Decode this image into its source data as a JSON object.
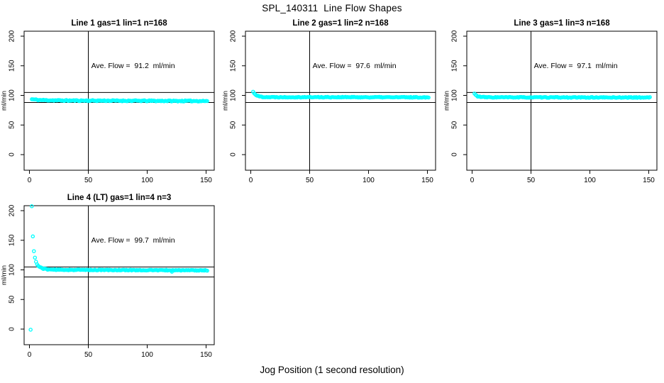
{
  "figure": {
    "title": "SPL_140311  Line Flow Shapes",
    "xlabel": "Jog Position (1 second resolution)",
    "background_color": "#ffffff",
    "line_color": "#000000",
    "marker_color": "#00ffff"
  },
  "chart_data": [
    {
      "type": "scatter",
      "title": "Line 1 gas=1 lin=1 n=168",
      "annotation": "Ave. Flow =  91.2  ml/min",
      "ave_flow_ml_min": 91.2,
      "n": 168,
      "ylabel": "ml/min",
      "x_ticks": [
        0,
        50,
        100,
        150
      ],
      "y_ticks": [
        0,
        50,
        100,
        150,
        200
      ],
      "xlim": [
        -4.5,
        157
      ],
      "ylim": [
        -26,
        210
      ],
      "grid": false,
      "ref_vline_x": 50,
      "ref_hlines_y": [
        105,
        88
      ],
      "marker_color": "#00ffff",
      "series_profile": [
        [
          2,
          93.5
        ],
        [
          8,
          92.2
        ],
        [
          30,
          91.3
        ],
        [
          80,
          91.0
        ],
        [
          130,
          90.6
        ],
        [
          151,
          90.6
        ]
      ],
      "outliers": [],
      "noise": 0.9,
      "seed": 11
    },
    {
      "type": "scatter",
      "title": "Line 2 gas=1 lin=2 n=168",
      "annotation": "Ave. Flow =  97.6  ml/min",
      "ave_flow_ml_min": 97.6,
      "n": 168,
      "ylabel": "ml/min",
      "x_ticks": [
        0,
        50,
        100,
        150
      ],
      "y_ticks": [
        0,
        50,
        100,
        150,
        200
      ],
      "xlim": [
        -4.5,
        157
      ],
      "ylim": [
        -26,
        210
      ],
      "grid": false,
      "ref_vline_x": 50,
      "ref_hlines_y": [
        105,
        88
      ],
      "marker_color": "#00ffff",
      "series_profile": [
        [
          2,
          106
        ],
        [
          3,
          103.5
        ],
        [
          5,
          100
        ],
        [
          7,
          98.3
        ],
        [
          10,
          97.5
        ],
        [
          16,
          97.1
        ],
        [
          80,
          97.0
        ],
        [
          151,
          96.8
        ]
      ],
      "outliers": [],
      "noise": 0.7,
      "seed": 22
    },
    {
      "type": "scatter",
      "title": "Line 3 gas=1 lin=3 n=168",
      "annotation": "Ave. Flow =  97.1  ml/min",
      "ave_flow_ml_min": 97.1,
      "n": 168,
      "ylabel": "ml/min",
      "x_ticks": [
        0,
        50,
        100,
        150
      ],
      "y_ticks": [
        0,
        50,
        100,
        150,
        200
      ],
      "xlim": [
        -4.5,
        157
      ],
      "ylim": [
        -26,
        210
      ],
      "grid": false,
      "ref_vline_x": 50,
      "ref_hlines_y": [
        105,
        88
      ],
      "marker_color": "#00ffff",
      "series_profile": [
        [
          2,
          103
        ],
        [
          3,
          100.5
        ],
        [
          5,
          98.3
        ],
        [
          8,
          97.2
        ],
        [
          14,
          96.8
        ],
        [
          80,
          96.6
        ],
        [
          151,
          96.5
        ]
      ],
      "outliers": [],
      "noise": 0.7,
      "seed": 33
    },
    {
      "type": "scatter",
      "title": "Line 4 (LT) gas=1 lin=4 n=3",
      "annotation": "Ave. Flow =  99.7  ml/min",
      "ave_flow_ml_min": 99.7,
      "n": 3,
      "ylabel": "ml/min",
      "x_ticks": [
        0,
        50,
        100,
        150
      ],
      "y_ticks": [
        0,
        50,
        100,
        150,
        200
      ],
      "xlim": [
        -4.5,
        157
      ],
      "ylim": [
        -26,
        210
      ],
      "grid": false,
      "ref_vline_x": 50,
      "ref_hlines_y": [
        105,
        88
      ],
      "marker_color": "#00ffff",
      "series_profile": [
        [
          2,
          207
        ],
        [
          3,
          151
        ],
        [
          4,
          127
        ],
        [
          5,
          117
        ],
        [
          6,
          111
        ],
        [
          7,
          107.5
        ],
        [
          9,
          104.5
        ],
        [
          12,
          102
        ],
        [
          16,
          100.8
        ],
        [
          24,
          100.2
        ],
        [
          60,
          99.8
        ],
        [
          151,
          99.2
        ]
      ],
      "outliers": [
        [
          1,
          -1
        ],
        [
          121,
          96.8
        ]
      ],
      "noise": 0.7,
      "seed": 44
    }
  ]
}
